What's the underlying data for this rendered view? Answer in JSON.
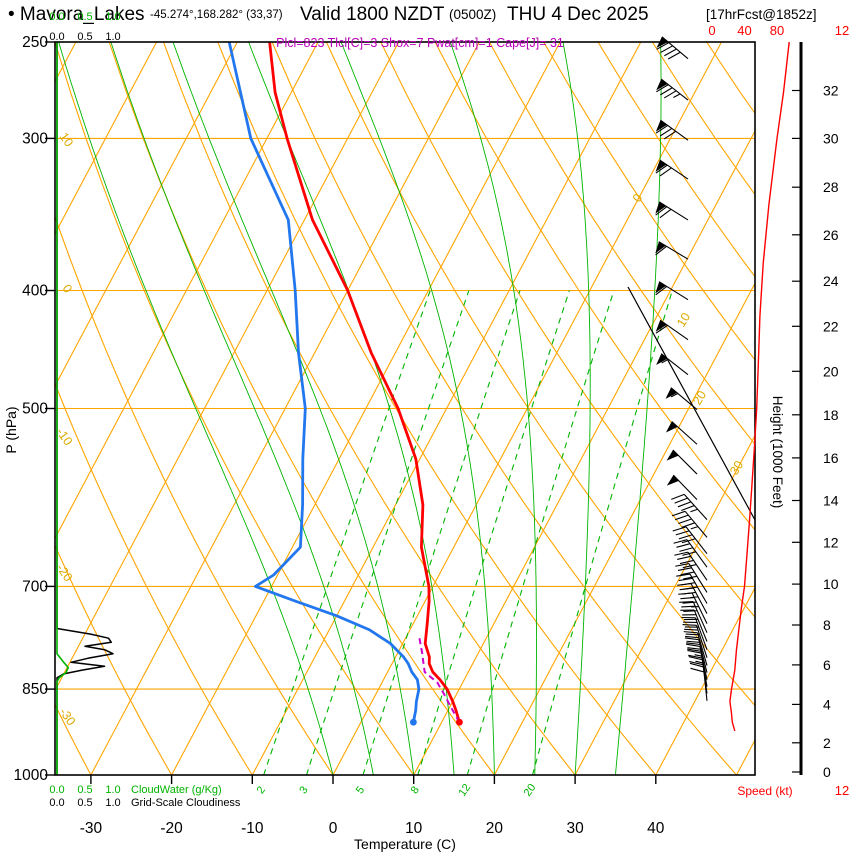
{
  "title": {
    "station_full": "• Mavora_Lakes",
    "coords": "-45.274°,168.282° (33,37)",
    "valid": "Valid 1800 NZDT",
    "valid_z": "(0500Z)",
    "valid_date": "THU 4 Dec 2025",
    "fcst_tag": "[17hrFcst@1852z]"
  },
  "params_line": "Plcl=823 Tlcl[C]=3 Shox=7 Pwat[cm]=1 Cape[J]= 31",
  "derived_params": {
    "plcl_hpa": 823,
    "tlcl_c": 3,
    "showalter_index": 7,
    "pwat_cm": 1,
    "cape_j": 31
  },
  "axis_labels": {
    "pressure": "P (hPa)",
    "temperature": "Temperature (C)",
    "height": "Height (1000 Feet)",
    "speed": "Speed (kt)"
  },
  "scales": {
    "scale_ticks": [
      "0.0",
      "0.5",
      "1.0"
    ],
    "cloudwater_label": "CloudWater (g/Kg)",
    "cloudiness_label": "Grid-Scale Cloudiness"
  },
  "speed_axis": {
    "ticks": [
      0,
      40,
      80
    ],
    "clipped_tick": "12"
  },
  "colors": {
    "grid_orange": "#FFA500",
    "moist_green": "#00B400",
    "temperature_red": "#FF0000",
    "dewpoint_blue": "#2277EE",
    "parcel_magenta": "#CC00CC",
    "params_magenta": "#BB00BB",
    "label_yellow": "#DDAA00",
    "speed_red": "#FF0000",
    "axis_black": "#000000"
  },
  "chart_data": {
    "type": "line",
    "chart_kind": "skewt-logp-sounding",
    "pressure_ticks_hpa": [
      250,
      300,
      400,
      500,
      700,
      850,
      1000
    ],
    "temp_ticks_c": [
      -30,
      -20,
      -10,
      0,
      10,
      20,
      30,
      40
    ],
    "pressure_range_hpa": [
      1000,
      250
    ],
    "isotherm_label_values_c": [
      0,
      10,
      20,
      30
    ],
    "dry_adiabat_label_values_c": [
      10,
      0,
      -10,
      -20,
      -30
    ],
    "mixing_ratio_lines_gkg": [
      2,
      3,
      5,
      8,
      12,
      20
    ],
    "moist_adiabat_values_c": [
      0,
      5,
      10,
      15,
      20,
      25,
      30,
      35
    ],
    "height_scale_kft_p": [
      [
        0,
        1013
      ],
      [
        2,
        941
      ],
      [
        4,
        875
      ],
      [
        6,
        812
      ],
      [
        8,
        753
      ],
      [
        10,
        697
      ],
      [
        12,
        644
      ],
      [
        14,
        595
      ],
      [
        16,
        549
      ],
      [
        18,
        506
      ],
      [
        20,
        466
      ],
      [
        22,
        428
      ],
      [
        24,
        393
      ],
      [
        26,
        360
      ],
      [
        28,
        329
      ],
      [
        30,
        300
      ],
      [
        32,
        274
      ]
    ],
    "surface": {
      "pressure_hpa": 905,
      "temp_c": 12.2,
      "dewpoint_c": 6.5
    },
    "temperature_profile_c": [
      [
        905,
        12.2
      ],
      [
        885,
        11.0
      ],
      [
        870,
        10.0
      ],
      [
        850,
        8.5
      ],
      [
        835,
        7.0
      ],
      [
        823,
        5.6
      ],
      [
        810,
        4.6
      ],
      [
        800,
        4.2
      ],
      [
        780,
        2.8
      ],
      [
        750,
        1.7
      ],
      [
        720,
        0.5
      ],
      [
        700,
        -0.5
      ],
      [
        650,
        -4.0
      ],
      [
        600,
        -6.6
      ],
      [
        550,
        -10.5
      ],
      [
        500,
        -16.0
      ],
      [
        450,
        -23.0
      ],
      [
        400,
        -30.0
      ],
      [
        350,
        -39.0
      ],
      [
        300,
        -47.5
      ],
      [
        275,
        -52.0
      ],
      [
        250,
        -56.0
      ]
    ],
    "dewpoint_profile_c": [
      [
        905,
        6.5
      ],
      [
        885,
        6.0
      ],
      [
        870,
        5.5
      ],
      [
        850,
        5.0
      ],
      [
        835,
        4.2
      ],
      [
        823,
        3.0
      ],
      [
        810,
        2.0
      ],
      [
        800,
        1.0
      ],
      [
        780,
        -1.5
      ],
      [
        760,
        -5.0
      ],
      [
        740,
        -10.0
      ],
      [
        720,
        -16.0
      ],
      [
        700,
        -22.0
      ],
      [
        685,
        -20.5
      ],
      [
        650,
        -19.0
      ],
      [
        600,
        -21.5
      ],
      [
        550,
        -24.5
      ],
      [
        500,
        -27.5
      ],
      [
        450,
        -32.0
      ],
      [
        400,
        -36.5
      ],
      [
        350,
        -42.0
      ],
      [
        300,
        -52.0
      ],
      [
        250,
        -61.0
      ]
    ],
    "parcel_path_c": [
      [
        905,
        12.2
      ],
      [
        880,
        10.2
      ],
      [
        860,
        8.6
      ],
      [
        840,
        6.9
      ],
      [
        823,
        4.6
      ],
      [
        810,
        3.9
      ],
      [
        795,
        3.1
      ],
      [
        780,
        2.2
      ],
      [
        770,
        1.6
      ]
    ],
    "wind_speed_profile_kt": [
      [
        920,
        28
      ],
      [
        905,
        25
      ],
      [
        890,
        24
      ],
      [
        870,
        22
      ],
      [
        850,
        24
      ],
      [
        820,
        28
      ],
      [
        790,
        30
      ],
      [
        760,
        33
      ],
      [
        730,
        36
      ],
      [
        700,
        40
      ],
      [
        660,
        43
      ],
      [
        620,
        46
      ],
      [
        580,
        49
      ],
      [
        540,
        52
      ],
      [
        500,
        55
      ],
      [
        460,
        57
      ],
      [
        420,
        59
      ],
      [
        380,
        63
      ],
      [
        340,
        70
      ],
      [
        300,
        80
      ],
      [
        275,
        88
      ],
      [
        250,
        95
      ]
    ],
    "cloud_water_gkg": [
      [
        250,
        0
      ],
      [
        795,
        0
      ],
      [
        808,
        0.12
      ],
      [
        816,
        0.2
      ],
      [
        824,
        0.16
      ],
      [
        832,
        0.04
      ],
      [
        838,
        0
      ],
      [
        1000,
        0
      ]
    ],
    "cloudiness_frac": [
      [
        250,
        0
      ],
      [
        758,
        0
      ],
      [
        766,
        0.6
      ],
      [
        772,
        0.92
      ],
      [
        778,
        0.97
      ],
      [
        784,
        0.5
      ],
      [
        789,
        0.85
      ],
      [
        795,
        1.0
      ],
      [
        802,
        0.55
      ],
      [
        808,
        0.25
      ],
      [
        814,
        0.85
      ],
      [
        820,
        0.45
      ],
      [
        826,
        0.12
      ],
      [
        832,
        0
      ],
      [
        1000,
        0
      ]
    ],
    "wind_barbs": [
      {
        "p": 258,
        "kt": 90,
        "dir": 310
      },
      {
        "p": 279,
        "kt": 85,
        "dir": 308
      },
      {
        "p": 301,
        "kt": 80,
        "dir": 306
      },
      {
        "p": 324,
        "kt": 72,
        "dir": 304
      },
      {
        "p": 350,
        "kt": 68,
        "dir": 302
      },
      {
        "p": 377,
        "kt": 62,
        "dir": 301
      },
      {
        "p": 407,
        "kt": 60,
        "dir": 302
      },
      {
        "p": 439,
        "kt": 58,
        "dir": 305
      },
      {
        "p": 469,
        "kt": 55,
        "dir": 308
      },
      {
        "p": 501,
        "kt": 55,
        "dir": 310
      },
      {
        "p": 535,
        "kt": 52,
        "dir": 312
      },
      {
        "p": 566,
        "kt": 50,
        "dir": 315
      },
      {
        "p": 594,
        "kt": 48,
        "dir": 316
      },
      {
        "p": 617,
        "kt": 45,
        "dir": 318
      },
      {
        "p": 638,
        "kt": 45,
        "dir": 320
      },
      {
        "p": 658,
        "kt": 42,
        "dir": 322
      },
      {
        "p": 675,
        "kt": 40,
        "dir": 324
      },
      {
        "p": 692,
        "kt": 40,
        "dir": 326
      },
      {
        "p": 708,
        "kt": 38,
        "dir": 328
      },
      {
        "p": 723,
        "kt": 38,
        "dir": 330
      },
      {
        "p": 737,
        "kt": 35,
        "dir": 332
      },
      {
        "p": 751,
        "kt": 35,
        "dir": 334
      },
      {
        "p": 764,
        "kt": 32,
        "dir": 336
      },
      {
        "p": 777,
        "kt": 32,
        "dir": 338
      },
      {
        "p": 789,
        "kt": 30,
        "dir": 340
      },
      {
        "p": 801,
        "kt": 30,
        "dir": 342
      },
      {
        "p": 813,
        "kt": 28,
        "dir": 344
      },
      {
        "p": 824,
        "kt": 28,
        "dir": 346
      },
      {
        "p": 835,
        "kt": 25,
        "dir": 348
      },
      {
        "p": 846,
        "kt": 25,
        "dir": 350
      },
      {
        "p": 857,
        "kt": 22,
        "dir": 352
      },
      {
        "p": 869,
        "kt": 20,
        "dir": 354
      }
    ]
  }
}
